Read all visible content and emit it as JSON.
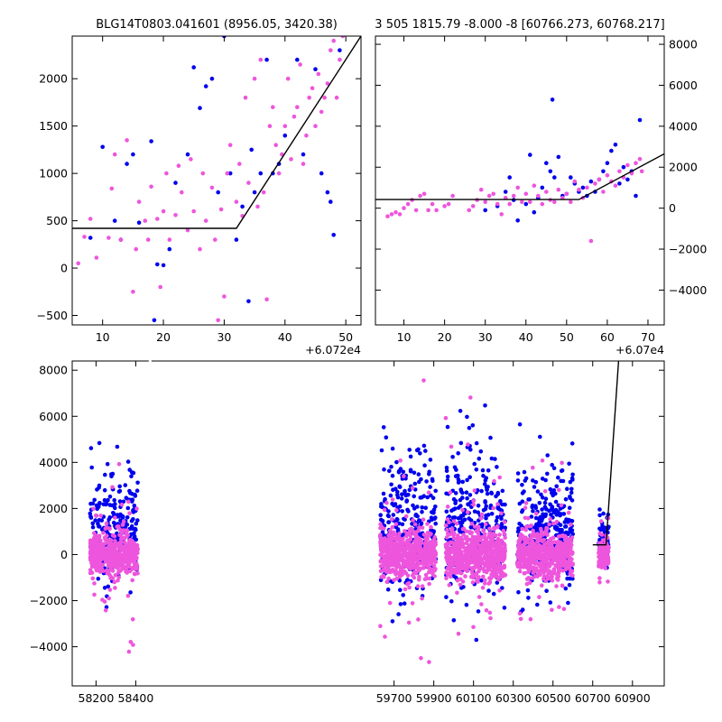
{
  "chart_data": [
    {
      "type": "scatter",
      "title": "BLG14T0803.041601 (8956.05, 3420.38)",
      "x_offset_label": "+6.072e4",
      "xlim": [
        5,
        52.5
      ],
      "ylim": [
        -600,
        2450
      ],
      "x_ticks": [
        10,
        20,
        30,
        40,
        50
      ],
      "y_ticks": [
        -500,
        0,
        500,
        1000,
        1500,
        2000
      ],
      "model_line": [
        [
          5,
          420
        ],
        [
          32,
          420
        ],
        [
          52.5,
          2450
        ]
      ],
      "colors": {
        "series_a": "#0000ee",
        "series_b": "#ee55dd",
        "model": "#000000"
      },
      "series_a": [
        [
          8,
          320
        ],
        [
          10,
          1280
        ],
        [
          12,
          500
        ],
        [
          13,
          300
        ],
        [
          14,
          1100
        ],
        [
          15,
          1200
        ],
        [
          16,
          480
        ],
        [
          18,
          1340
        ],
        [
          18.5,
          -550
        ],
        [
          19,
          40
        ],
        [
          20,
          30
        ],
        [
          21,
          200
        ],
        [
          22,
          900
        ],
        [
          24,
          1200
        ],
        [
          25,
          2120
        ],
        [
          26,
          1690
        ],
        [
          27,
          1920
        ],
        [
          28,
          2000
        ],
        [
          29,
          800
        ],
        [
          30,
          2450
        ],
        [
          31,
          1000
        ],
        [
          32,
          300
        ],
        [
          33,
          650
        ],
        [
          34,
          -350
        ],
        [
          34.5,
          1250
        ],
        [
          35,
          800
        ],
        [
          36,
          1000
        ],
        [
          37,
          2200
        ],
        [
          38,
          1000
        ],
        [
          39,
          1100
        ],
        [
          40,
          1400
        ],
        [
          42,
          2200
        ],
        [
          43,
          1200
        ],
        [
          45,
          2100
        ],
        [
          46,
          1000
        ],
        [
          47,
          800
        ],
        [
          47.5,
          700
        ],
        [
          48,
          350
        ],
        [
          49,
          2300
        ]
      ],
      "series_b": [
        [
          6,
          50
        ],
        [
          7,
          330
        ],
        [
          8,
          520
        ],
        [
          9,
          110
        ],
        [
          11,
          320
        ],
        [
          11.5,
          840
        ],
        [
          12,
          1200
        ],
        [
          13,
          300
        ],
        [
          14,
          1350
        ],
        [
          15,
          -250
        ],
        [
          15.5,
          200
        ],
        [
          16,
          700
        ],
        [
          17,
          500
        ],
        [
          17.5,
          300
        ],
        [
          18,
          860
        ],
        [
          19,
          520
        ],
        [
          19.5,
          -200
        ],
        [
          20,
          600
        ],
        [
          20.5,
          1000
        ],
        [
          21,
          300
        ],
        [
          22,
          560
        ],
        [
          22.5,
          1080
        ],
        [
          23,
          800
        ],
        [
          24,
          400
        ],
        [
          24.5,
          1150
        ],
        [
          25,
          600
        ],
        [
          26,
          200
        ],
        [
          26.5,
          1000
        ],
        [
          27,
          500
        ],
        [
          28,
          850
        ],
        [
          28.5,
          300
        ],
        [
          29,
          -550
        ],
        [
          29.5,
          620
        ],
        [
          30,
          -300
        ],
        [
          30.5,
          1000
        ],
        [
          31,
          1300
        ],
        [
          32,
          700
        ],
        [
          32.5,
          1100
        ],
        [
          33,
          550
        ],
        [
          33.5,
          1800
        ],
        [
          34,
          900
        ],
        [
          35,
          2000
        ],
        [
          35.5,
          650
        ],
        [
          36,
          2200
        ],
        [
          36.5,
          800
        ],
        [
          37,
          -330
        ],
        [
          37.5,
          1500
        ],
        [
          38,
          1700
        ],
        [
          38.5,
          1300
        ],
        [
          39,
          1000
        ],
        [
          39.5,
          1200
        ],
        [
          40,
          1500
        ],
        [
          40.5,
          2000
        ],
        [
          41,
          1150
        ],
        [
          41.5,
          1600
        ],
        [
          42,
          1700
        ],
        [
          42.5,
          2150
        ],
        [
          43,
          1100
        ],
        [
          43.5,
          1400
        ],
        [
          44,
          1800
        ],
        [
          44.5,
          1900
        ],
        [
          45,
          1500
        ],
        [
          45.5,
          2050
        ],
        [
          46,
          1650
        ],
        [
          46.5,
          1800
        ],
        [
          47,
          1950
        ],
        [
          47.5,
          2300
        ],
        [
          48,
          2400
        ],
        [
          48.5,
          1800
        ],
        [
          49,
          2200
        ],
        [
          49.5,
          2450
        ]
      ]
    },
    {
      "type": "scatter",
      "title": "3 505 1815.79 -8.000 -8 [60766.273, 60768.217]",
      "x_offset_label": "+6.07e4",
      "xlim": [
        3,
        74
      ],
      "ylim": [
        -5700,
        8400
      ],
      "x_ticks": [
        10,
        20,
        30,
        40,
        50,
        60,
        70
      ],
      "y_ticks": [
        -4000,
        -2000,
        0,
        2000,
        4000,
        6000,
        8000
      ],
      "y_axis_side": "right",
      "model_line": [
        [
          3,
          420
        ],
        [
          53,
          420
        ],
        [
          74,
          2650
        ]
      ],
      "colors": {
        "series_a": "#0000ee",
        "series_b": "#ee55dd",
        "model": "#000000"
      },
      "series_a": [
        [
          30,
          -100
        ],
        [
          33,
          100
        ],
        [
          35,
          800
        ],
        [
          36,
          1500
        ],
        [
          37,
          400
        ],
        [
          38,
          -600
        ],
        [
          40,
          200
        ],
        [
          41,
          2600
        ],
        [
          42,
          -200
        ],
        [
          43,
          500
        ],
        [
          44,
          1000
        ],
        [
          45,
          2200
        ],
        [
          46,
          1800
        ],
        [
          46.5,
          5300
        ],
        [
          47,
          1500
        ],
        [
          48,
          2500
        ],
        [
          49,
          600
        ],
        [
          50,
          700
        ],
        [
          51,
          1500
        ],
        [
          52,
          1200
        ],
        [
          53,
          800
        ],
        [
          54,
          1000
        ],
        [
          55,
          600
        ],
        [
          56,
          1300
        ],
        [
          57,
          800
        ],
        [
          58,
          1400
        ],
        [
          59,
          1800
        ],
        [
          60,
          2200
        ],
        [
          61,
          2800
        ],
        [
          62,
          3100
        ],
        [
          63,
          1200
        ],
        [
          64,
          2000
        ],
        [
          65,
          1400
        ],
        [
          66,
          1800
        ],
        [
          67,
          600
        ],
        [
          68,
          4300
        ]
      ],
      "series_b": [
        [
          6,
          -400
        ],
        [
          7,
          -300
        ],
        [
          8,
          -200
        ],
        [
          9,
          -300
        ],
        [
          10,
          0
        ],
        [
          11,
          200
        ],
        [
          12,
          400
        ],
        [
          13,
          -100
        ],
        [
          14,
          600
        ],
        [
          15,
          700
        ],
        [
          16,
          -100
        ],
        [
          17,
          200
        ],
        [
          18,
          -100
        ],
        [
          20,
          100
        ],
        [
          21,
          200
        ],
        [
          22,
          600
        ],
        [
          26,
          -100
        ],
        [
          27,
          100
        ],
        [
          28,
          400
        ],
        [
          29,
          900
        ],
        [
          30,
          300
        ],
        [
          31,
          600
        ],
        [
          32,
          700
        ],
        [
          33,
          200
        ],
        [
          34,
          -300
        ],
        [
          35,
          500
        ],
        [
          36,
          200
        ],
        [
          37,
          600
        ],
        [
          38,
          1000
        ],
        [
          39,
          300
        ],
        [
          40,
          700
        ],
        [
          41,
          300
        ],
        [
          42,
          1100
        ],
        [
          43,
          600
        ],
        [
          44,
          200
        ],
        [
          45,
          800
        ],
        [
          46,
          400
        ],
        [
          47,
          300
        ],
        [
          48,
          900
        ],
        [
          49,
          500
        ],
        [
          50,
          700
        ],
        [
          51,
          300
        ],
        [
          52,
          1300
        ],
        [
          53,
          900
        ],
        [
          54,
          500
        ],
        [
          55,
          1000
        ],
        [
          56,
          -1600
        ],
        [
          57,
          1200
        ],
        [
          58,
          1400
        ],
        [
          59,
          800
        ],
        [
          60,
          1600
        ],
        [
          61,
          1300
        ],
        [
          62,
          1100
        ],
        [
          63,
          1800
        ],
        [
          64,
          1500
        ],
        [
          65,
          2100
        ],
        [
          66,
          1700
        ],
        [
          67,
          2200
        ],
        [
          68,
          2400
        ],
        [
          68.5,
          1800
        ]
      ]
    },
    {
      "type": "scatter",
      "title": "",
      "xlim": [
        58080,
        61060
      ],
      "ylim": [
        -5700,
        8400
      ],
      "x_ticks": [
        58200,
        58400,
        59700,
        59900,
        60100,
        60300,
        60500,
        60700,
        60900
      ],
      "y_ticks": [
        -4000,
        -2000,
        0,
        2000,
        4000,
        6000,
        8000
      ],
      "broken_axis_gap": [
        58470,
        59560
      ],
      "seasons": [
        {
          "center": 58290,
          "half_width": 120,
          "spread_a": 1600,
          "spread_b": 700,
          "count": 520
        },
        {
          "center": 59770,
          "half_width": 140,
          "spread_a": 2100,
          "spread_b": 900,
          "count": 600
        },
        {
          "center": 60110,
          "half_width": 150,
          "spread_a": 2200,
          "spread_b": 1000,
          "count": 640
        },
        {
          "center": 60460,
          "half_width": 140,
          "spread_a": 1900,
          "spread_b": 800,
          "count": 600
        },
        {
          "center": 60755,
          "half_width": 25,
          "spread_a": 700,
          "spread_b": 500,
          "count": 160
        }
      ],
      "model_line": [
        [
          60700,
          420
        ],
        [
          60767,
          420
        ],
        [
          60830,
          8400
        ]
      ],
      "colors": {
        "series_a": "#0000ee",
        "series_b": "#ee55dd",
        "model": "#000000"
      }
    }
  ]
}
